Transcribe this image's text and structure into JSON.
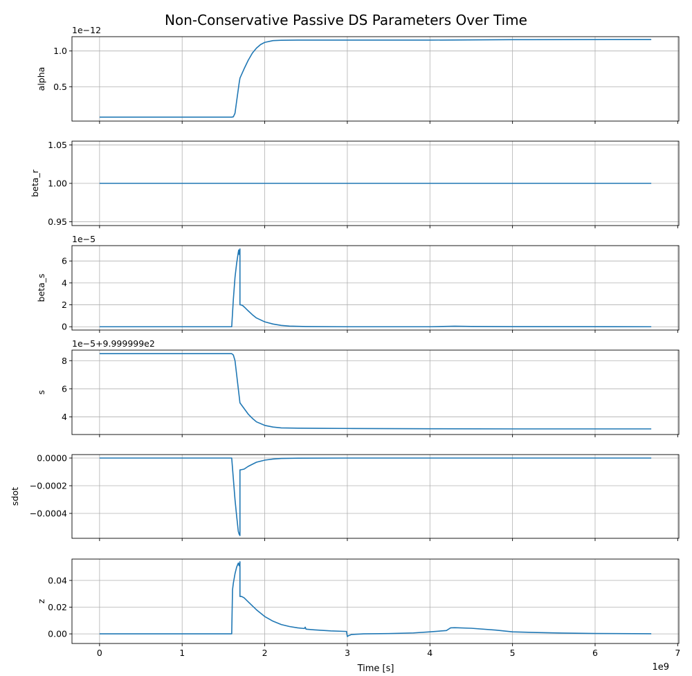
{
  "figure": {
    "title": "Non-Conservative Passive DS Parameters Over Time",
    "xlabel": "Time [s]",
    "x_offset_text": "1e9",
    "x_ticks": [
      0,
      1,
      2,
      3,
      4,
      5,
      6,
      7
    ],
    "x_tick_labels": [
      "0",
      "1",
      "2",
      "3",
      "4",
      "5",
      "6",
      "7"
    ],
    "xlim": [
      -0.334,
      7.014
    ],
    "grid": true,
    "line_color": "#1f77b4"
  },
  "chart_data": [
    {
      "type": "line",
      "ylabel": "alpha",
      "offset_text": "1e−12",
      "yticks": [
        0.5,
        1.0
      ],
      "ytick_labels": [
        "0.5",
        "1.0"
      ],
      "ylim": [
        0.02,
        1.2
      ],
      "series": [
        {
          "x": [
            0,
            1.55,
            1.6,
            1.62,
            1.64,
            1.66,
            1.69,
            1.7,
            1.75,
            1.8,
            1.85,
            1.9,
            1.95,
            2.0,
            2.1,
            2.2,
            2.4,
            3.0,
            4.0,
            5.0,
            6.68
          ],
          "y": [
            0.075,
            0.075,
            0.075,
            0.08,
            0.13,
            0.3,
            0.55,
            0.62,
            0.75,
            0.87,
            0.97,
            1.04,
            1.09,
            1.12,
            1.145,
            1.15,
            1.152,
            1.152,
            1.152,
            1.158,
            1.16
          ]
        }
      ]
    },
    {
      "type": "line",
      "ylabel": "beta_r",
      "offset_text": "",
      "yticks": [
        0.95,
        1.0,
        1.05
      ],
      "ytick_labels": [
        "0.95",
        "1.00",
        "1.05"
      ],
      "ylim": [
        0.945,
        1.055
      ],
      "series": [
        {
          "x": [
            0,
            6.68
          ],
          "y": [
            1.0,
            1.0
          ]
        }
      ]
    },
    {
      "type": "line",
      "ylabel": "beta_s",
      "offset_text": "1e−5",
      "yticks": [
        0,
        2,
        4,
        6
      ],
      "ytick_labels": [
        "0",
        "2",
        "4",
        "6"
      ],
      "ylim": [
        -0.3,
        7.4
      ],
      "series": [
        {
          "x": [
            0,
            1.6,
            1.62,
            1.63,
            1.64,
            1.66,
            1.68,
            1.685,
            1.69,
            1.7,
            1.7,
            1.71,
            1.73,
            1.76,
            1.8,
            1.85,
            1.9,
            2.0,
            2.1,
            2.2,
            2.3,
            2.5,
            3.0,
            4.0,
            4.3,
            4.5,
            5.0,
            6.68
          ],
          "y": [
            0,
            0,
            2.5,
            3.5,
            4.5,
            5.8,
            6.8,
            7.0,
            6.6,
            7.1,
            2.0,
            2.0,
            1.95,
            1.75,
            1.45,
            1.1,
            0.8,
            0.45,
            0.25,
            0.12,
            0.06,
            0.02,
            0.0,
            0.0,
            0.05,
            0.03,
            0.01,
            0.0
          ]
        }
      ]
    },
    {
      "type": "line",
      "ylabel": "s",
      "offset_text": "1e−5+9.999999e2",
      "yticks": [
        4,
        6,
        8
      ],
      "ytick_labels": [
        "4",
        "6",
        "8"
      ],
      "ylim": [
        2.75,
        8.75
      ],
      "series": [
        {
          "x": [
            0,
            1.6,
            1.62,
            1.64,
            1.66,
            1.68,
            1.7,
            1.75,
            1.8,
            1.85,
            1.9,
            2.0,
            2.1,
            2.2,
            2.4,
            2.7,
            3.0,
            4.0,
            5.0,
            6.68
          ],
          "y": [
            8.5,
            8.5,
            8.4,
            8.0,
            7.0,
            6.0,
            5.0,
            4.6,
            4.2,
            3.9,
            3.65,
            3.4,
            3.28,
            3.22,
            3.2,
            3.19,
            3.18,
            3.16,
            3.15,
            3.15
          ]
        }
      ]
    },
    {
      "type": "line",
      "ylabel": "sdot",
      "offset_text": "",
      "yticks": [
        -0.0004,
        -0.0002,
        0.0
      ],
      "ytick_labels": [
        "−0.0004",
        "−0.0002",
        "0.0000"
      ],
      "ylim": [
        -0.00058,
        2.5e-05
      ],
      "series": [
        {
          "x": [
            0,
            1.6,
            1.62,
            1.64,
            1.66,
            1.68,
            1.69,
            1.7,
            1.7,
            1.71,
            1.75,
            1.8,
            1.85,
            1.9,
            2.0,
            2.1,
            2.2,
            2.4,
            3.0,
            4.0,
            6.68
          ],
          "y": [
            0,
            0,
            -0.00015,
            -0.0003,
            -0.00042,
            -0.00053,
            -0.00055,
            -0.00056,
            -8.5e-05,
            -8.5e-05,
            -8e-05,
            -6e-05,
            -4.5e-05,
            -3e-05,
            -1.5e-05,
            -7e-06,
            -3e-06,
            -1e-06,
            0,
            0,
            0
          ]
        }
      ]
    },
    {
      "type": "line",
      "ylabel": "z",
      "offset_text": "",
      "yticks": [
        0.0,
        0.02,
        0.04
      ],
      "ytick_labels": [
        "0.00",
        "0.02",
        "0.04"
      ],
      "ylim": [
        -0.0072,
        0.056
      ],
      "series": [
        {
          "x": [
            0,
            1.6,
            1.61,
            1.62,
            1.64,
            1.66,
            1.68,
            1.69,
            1.7,
            1.7,
            1.72,
            1.75,
            1.8,
            1.9,
            2.0,
            2.1,
            2.2,
            2.3,
            2.4,
            2.48,
            2.49,
            2.5,
            2.6,
            2.8,
            2.99,
            3.0,
            3.01,
            3.05,
            3.1,
            3.2,
            3.5,
            3.8,
            4.0,
            4.2,
            4.25,
            4.3,
            4.5,
            4.8,
            5.0,
            5.3,
            5.6,
            6.0,
            6.68
          ],
          "y": [
            0,
            0,
            0.033,
            0.038,
            0.045,
            0.05,
            0.053,
            0.051,
            0.054,
            0.028,
            0.028,
            0.027,
            0.024,
            0.018,
            0.013,
            0.0095,
            0.007,
            0.0055,
            0.0045,
            0.004,
            0.005,
            0.0035,
            0.003,
            0.0022,
            0.0018,
            -0.002,
            -0.0015,
            -0.0005,
            -0.0003,
            0.0,
            0.0002,
            0.0007,
            0.0015,
            0.0025,
            0.0045,
            0.0046,
            0.0042,
            0.0028,
            0.0015,
            0.001,
            0.0006,
            0.0003,
            0.0001
          ]
        }
      ]
    }
  ]
}
